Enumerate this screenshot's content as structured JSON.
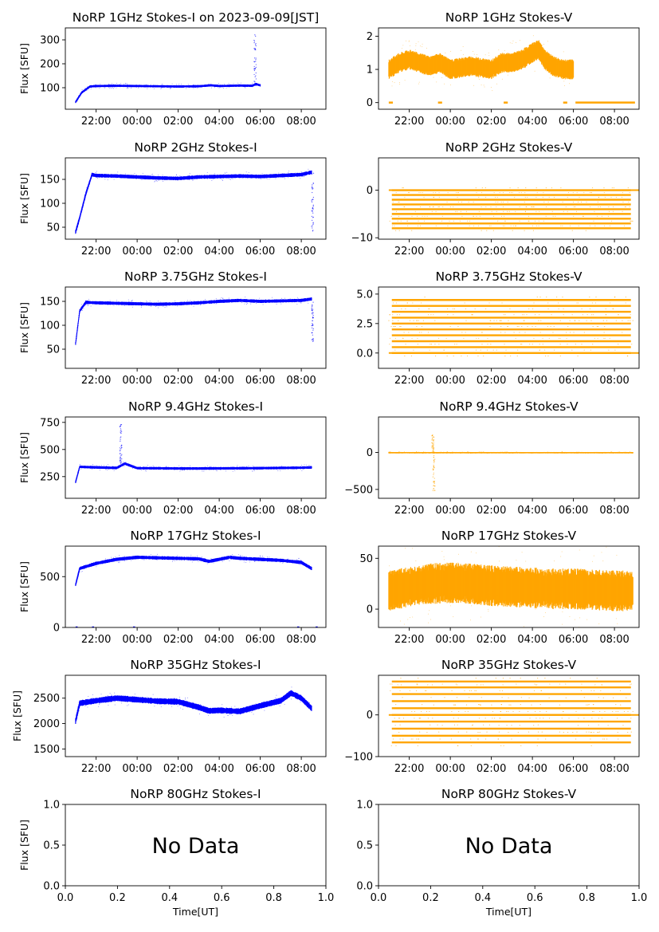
{
  "chart_data": [
    {
      "type": "scatter",
      "title": "NoRP 1GHz Stokes-I on 2023-09-09[JST]",
      "ylabel": "Flux [SFU]",
      "color": "#0000ff",
      "xlim": [
        20.5,
        33.2
      ],
      "ylim": [
        10,
        350
      ],
      "yticks": [
        100,
        200,
        300
      ],
      "xticks": [
        "22:00",
        "00:00",
        "02:00",
        "04:00",
        "06:00",
        "08:00"
      ],
      "series": [
        {
          "x": [
            21.0,
            21.3,
            21.7,
            22.0,
            23.0,
            24.0,
            25.0,
            26.0,
            27.0,
            27.6,
            28.0,
            28.5,
            29.0,
            29.6,
            29.8,
            30.0
          ],
          "y": [
            40,
            80,
            105,
            107,
            108,
            107,
            106,
            105,
            106,
            110,
            107,
            108,
            109,
            108,
            115,
            110
          ]
        }
      ],
      "spikes": [
        {
          "x": 29.75,
          "y": 330
        }
      ],
      "band": 10
    },
    {
      "type": "scatter",
      "title": "NoRP 1GHz Stokes-V",
      "ylabel": "",
      "color": "#ffa500",
      "xlim": [
        20.5,
        33.2
      ],
      "ylim": [
        -0.2,
        2.25
      ],
      "yticks": [
        0,
        1,
        2
      ],
      "xticks": [
        "22:00",
        "00:00",
        "02:00",
        "04:00",
        "06:00",
        "08:00"
      ],
      "series": [
        {
          "x": [
            21.0,
            21.5,
            22.0,
            22.5,
            23.0,
            23.5,
            24.0,
            25.0,
            26.0,
            26.5,
            27.0,
            27.5,
            28.0,
            28.3,
            28.6,
            29.0,
            29.5,
            30.0
          ],
          "y": [
            1.0,
            1.2,
            1.3,
            1.2,
            1.1,
            1.2,
            1.0,
            1.1,
            1.0,
            1.2,
            1.2,
            1.3,
            1.5,
            1.6,
            1.3,
            1.1,
            1.0,
            1.0
          ]
        }
      ],
      "zero_segments": [
        [
          21.0,
          21.2
        ],
        [
          23.4,
          23.6
        ],
        [
          26.6,
          26.8
        ],
        [
          29.5,
          29.7
        ],
        [
          30.1,
          33.0
        ]
      ],
      "band": 0.6
    },
    {
      "type": "scatter",
      "title": "NoRP 2GHz Stokes-I",
      "ylabel": "Flux [SFU]",
      "color": "#0000ff",
      "xlim": [
        20.5,
        33.2
      ],
      "ylim": [
        25,
        195
      ],
      "yticks": [
        50,
        100,
        150
      ],
      "xticks": [
        "22:00",
        "00:00",
        "02:00",
        "04:00",
        "06:00",
        "08:00"
      ],
      "series": [
        {
          "x": [
            21.0,
            21.2,
            21.5,
            21.8,
            22.0,
            23.0,
            24.0,
            25.0,
            26.0,
            27.0,
            28.0,
            29.0,
            30.0,
            31.0,
            32.0,
            32.5
          ],
          "y": [
            40,
            70,
            120,
            160,
            158,
            157,
            155,
            153,
            152,
            155,
            156,
            157,
            156,
            158,
            160,
            165
          ]
        }
      ],
      "spikes": [
        {
          "x": 32.55,
          "y": 40
        }
      ],
      "band": 8
    },
    {
      "type": "scatter",
      "title": "NoRP 2GHz Stokes-V",
      "ylabel": "",
      "color": "#ffa500",
      "xlim": [
        20.5,
        33.2
      ],
      "ylim": [
        -10.3,
        6.8
      ],
      "yticks": [
        0,
        -10
      ],
      "xticks": [
        "22:00",
        "00:00",
        "02:00",
        "04:00",
        "06:00",
        "08:00"
      ],
      "levels": [
        0,
        -1,
        -2,
        -3,
        -4,
        -5,
        -6,
        -7,
        -8
      ],
      "level_range": [
        21.0,
        32.9
      ],
      "band": 0
    },
    {
      "type": "scatter",
      "title": "NoRP 3.75GHz Stokes-I",
      "ylabel": "Flux [SFU]",
      "color": "#0000ff",
      "xlim": [
        20.5,
        33.2
      ],
      "ylim": [
        10,
        180
      ],
      "yticks": [
        50,
        100,
        150
      ],
      "xticks": [
        "22:00",
        "00:00",
        "02:00",
        "04:00",
        "06:00",
        "08:00"
      ],
      "series": [
        {
          "x": [
            21.0,
            21.2,
            21.5,
            22.0,
            23.0,
            24.0,
            25.0,
            26.0,
            27.0,
            28.0,
            29.0,
            30.0,
            31.0,
            32.0,
            32.5
          ],
          "y": [
            62,
            130,
            148,
            147,
            146,
            145,
            144,
            145,
            147,
            150,
            152,
            150,
            151,
            152,
            155
          ]
        }
      ],
      "spikes": [
        {
          "x": 32.55,
          "y": 65
        }
      ],
      "band": 7
    },
    {
      "type": "scatter",
      "title": "NoRP 3.75GHz Stokes-V",
      "ylabel": "",
      "color": "#ffa500",
      "xlim": [
        20.5,
        33.2
      ],
      "ylim": [
        -1.3,
        5.6
      ],
      "yticks": [
        0.0,
        2.5,
        5.0
      ],
      "yticklabels": [
        "0.0",
        "2.5",
        "5.0"
      ],
      "xticks": [
        "22:00",
        "00:00",
        "02:00",
        "04:00",
        "06:00",
        "08:00"
      ],
      "levels": [
        0.0,
        0.5,
        1.0,
        1.5,
        2.0,
        2.5,
        3.0,
        3.5,
        4.0,
        4.5
      ],
      "level_range": [
        21.0,
        32.9
      ],
      "band": 0
    },
    {
      "type": "scatter",
      "title": "NoRP 9.4GHz Stokes-I",
      "ylabel": "Flux [SFU]",
      "color": "#0000ff",
      "xlim": [
        20.5,
        33.2
      ],
      "ylim": [
        50,
        800
      ],
      "yticks": [
        250,
        500,
        750
      ],
      "xticks": [
        "22:00",
        "00:00",
        "02:00",
        "04:00",
        "06:00",
        "08:00"
      ],
      "series": [
        {
          "x": [
            21.0,
            21.2,
            22.0,
            23.0,
            23.4,
            24.0,
            25.0,
            26.0,
            27.0,
            28.0,
            29.0,
            30.0,
            31.0,
            32.0,
            32.5
          ],
          "y": [
            200,
            340,
            335,
            330,
            370,
            328,
            327,
            325,
            325,
            326,
            327,
            328,
            330,
            332,
            335
          ]
        }
      ],
      "spikes": [
        {
          "x": 23.2,
          "y": 730
        }
      ],
      "band": 25
    },
    {
      "type": "scatter",
      "title": "NoRP 9.4GHz Stokes-V",
      "ylabel": "",
      "color": "#ffa500",
      "xlim": [
        20.5,
        33.2
      ],
      "ylim": [
        -620,
        480
      ],
      "yticks": [
        0,
        -500
      ],
      "xticks": [
        "22:00",
        "00:00",
        "02:00",
        "04:00",
        "06:00",
        "08:00"
      ],
      "series": [
        {
          "x": [
            21.0,
            22.0,
            23.0,
            24.0,
            25.0,
            26.0,
            27.0,
            28.0,
            29.0,
            30.0,
            31.0,
            32.0,
            32.9
          ],
          "y": [
            0,
            0,
            0,
            0,
            0,
            0,
            0,
            0,
            0,
            0,
            0,
            0,
            0
          ]
        }
      ],
      "spikes": [
        {
          "x": 23.2,
          "y": -550
        },
        {
          "x": 23.15,
          "y": 240
        }
      ],
      "band": 12
    },
    {
      "type": "scatter",
      "title": "NoRP 17GHz Stokes-I",
      "ylabel": "Flux [SFU]",
      "color": "#0000ff",
      "xlim": [
        20.5,
        33.2
      ],
      "ylim": [
        0,
        800
      ],
      "yticks": [
        0,
        500
      ],
      "xticks": [
        "22:00",
        "00:00",
        "02:00",
        "04:00",
        "06:00",
        "08:00"
      ],
      "series": [
        {
          "x": [
            21.0,
            21.2,
            22.0,
            23.0,
            24.0,
            25.0,
            26.0,
            27.0,
            27.5,
            28.0,
            28.5,
            29.0,
            30.0,
            31.0,
            32.0,
            32.5
          ],
          "y": [
            420,
            580,
            630,
            670,
            690,
            685,
            680,
            675,
            650,
            670,
            690,
            680,
            670,
            660,
            640,
            580
          ]
        }
      ],
      "zero_segments": [
        [
          21.0,
          21.1
        ],
        [
          21.8,
          21.9
        ],
        [
          23.8,
          23.9
        ],
        [
          31.8,
          31.9
        ],
        [
          32.7,
          32.8
        ]
      ],
      "band": 35
    },
    {
      "type": "scatter",
      "title": "NoRP 17GHz Stokes-V",
      "ylabel": "",
      "color": "#ffa500",
      "xlim": [
        20.5,
        33.2
      ],
      "ylim": [
        -18,
        62
      ],
      "yticks": [
        0,
        50
      ],
      "xticks": [
        "22:00",
        "00:00",
        "02:00",
        "04:00",
        "06:00",
        "08:00"
      ],
      "series": [
        {
          "x": [
            21.0,
            21.5,
            22.0,
            23.0,
            24.0,
            25.0,
            26.0,
            27.0,
            28.0,
            29.0,
            30.0,
            31.0,
            32.0,
            32.9
          ],
          "y": [
            18,
            20,
            22,
            25,
            26,
            25,
            23,
            22,
            21,
            20,
            20,
            19,
            18,
            18
          ]
        }
      ],
      "band": 40
    },
    {
      "type": "scatter",
      "title": "NoRP 35GHz Stokes-I",
      "ylabel": "Flux [SFU]",
      "color": "#0000ff",
      "xlim": [
        20.5,
        33.2
      ],
      "ylim": [
        1350,
        2950
      ],
      "yticks": [
        1500,
        2000,
        2500
      ],
      "xticks": [
        "22:00",
        "00:00",
        "02:00",
        "04:00",
        "06:00",
        "08:00"
      ],
      "series": [
        {
          "x": [
            21.0,
            21.2,
            22.0,
            23.0,
            24.0,
            25.0,
            26.0,
            27.0,
            27.5,
            28.0,
            29.0,
            30.0,
            31.0,
            31.5,
            32.0,
            32.5
          ],
          "y": [
            2050,
            2400,
            2450,
            2500,
            2470,
            2440,
            2430,
            2320,
            2250,
            2260,
            2240,
            2350,
            2450,
            2600,
            2500,
            2300
          ]
        }
      ],
      "band": 120
    },
    {
      "type": "scatter",
      "title": "NoRP 35GHz Stokes-V",
      "ylabel": "",
      "color": "#ffa500",
      "xlim": [
        20.5,
        33.2
      ],
      "ylim": [
        -100,
        95
      ],
      "yticks": [
        0,
        -100
      ],
      "xticks": [
        "22:00",
        "00:00",
        "02:00",
        "04:00",
        "06:00",
        "08:00"
      ],
      "levels": [
        -66,
        -50,
        -33,
        -16,
        0,
        16,
        33,
        50,
        66,
        80
      ],
      "level_range": [
        21.0,
        32.9
      ],
      "band": 0
    },
    {
      "type": "empty",
      "title": "NoRP 80GHz Stokes-I",
      "ylabel": "Flux [SFU]",
      "xlabel": "Time[UT]",
      "message": "No Data",
      "xlim": [
        0,
        1
      ],
      "ylim": [
        0,
        1
      ],
      "xticks": [
        "0.0",
        "0.2",
        "0.4",
        "0.6",
        "0.8",
        "1.0"
      ],
      "yticks": [
        "0.0",
        "0.5",
        "1.0"
      ]
    },
    {
      "type": "empty",
      "title": "NoRP 80GHz Stokes-V",
      "ylabel": "",
      "xlabel": "Time[UT]",
      "message": "No Data",
      "xlim": [
        0,
        1
      ],
      "ylim": [
        0,
        1
      ],
      "xticks": [
        "0.0",
        "0.2",
        "0.4",
        "0.6",
        "0.8",
        "1.0"
      ],
      "yticks": [
        "0.0",
        "0.5",
        "1.0"
      ]
    }
  ]
}
